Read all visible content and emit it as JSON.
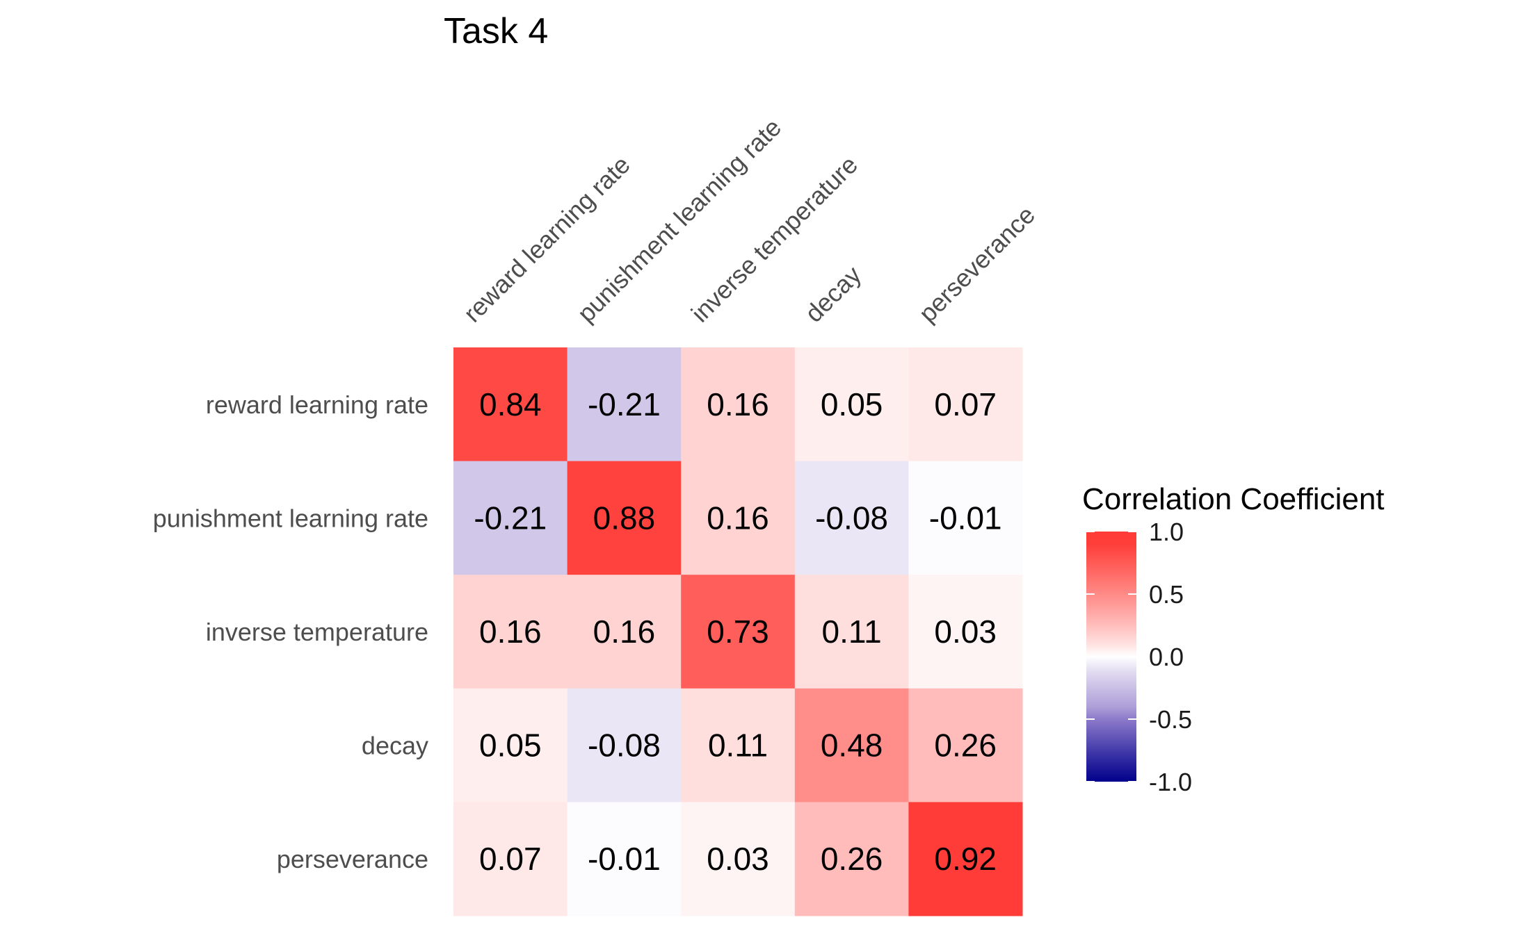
{
  "chart_data": {
    "type": "heatmap",
    "title": "Task 4",
    "variables": [
      "reward learning rate",
      "punishment learning rate",
      "inverse temperature",
      "decay",
      "perseverance"
    ],
    "matrix": [
      [
        0.84,
        -0.21,
        0.16,
        0.05,
        0.07
      ],
      [
        -0.21,
        0.88,
        0.16,
        -0.08,
        -0.01
      ],
      [
        0.16,
        0.16,
        0.73,
        0.11,
        0.03
      ],
      [
        0.05,
        -0.08,
        0.11,
        0.48,
        0.26
      ],
      [
        0.07,
        -0.01,
        0.03,
        0.26,
        0.92
      ]
    ],
    "legend": {
      "title": "Correlation Coefficient",
      "ticks": [
        "1.0",
        "0.5",
        "0.0",
        "-0.5",
        "-1.0"
      ],
      "range": [
        -1,
        1
      ],
      "low_color": "#00008b",
      "mid_color": "#ffffff",
      "high_color": "#ff0000"
    },
    "grid": false
  }
}
